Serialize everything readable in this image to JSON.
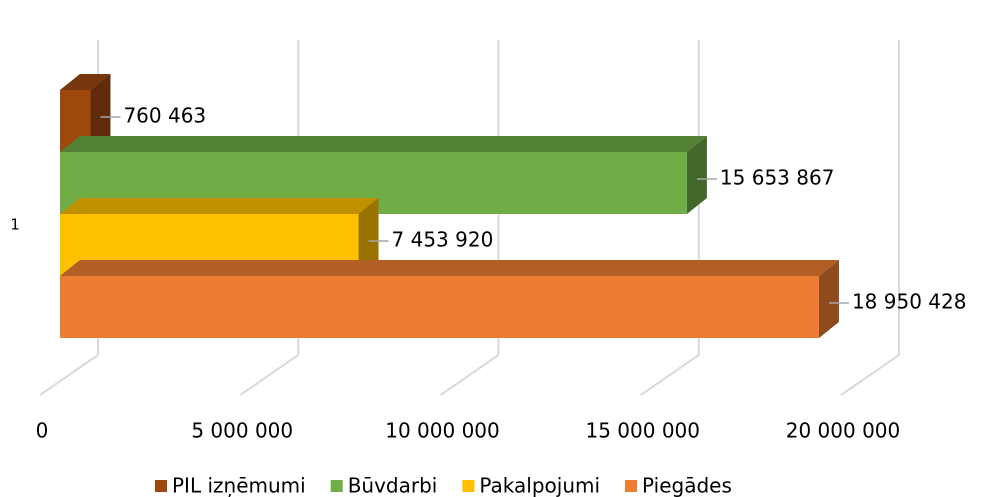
{
  "chart_data": {
    "type": "bar3d-horizontal",
    "categories": [
      "1"
    ],
    "series": [
      {
        "name": "PIL izņēmumi",
        "color": "#9E480E",
        "values": [
          760463
        ],
        "value_labels": [
          "760 463"
        ]
      },
      {
        "name": "Būvdarbi",
        "color": "#70AD47",
        "values": [
          15653867
        ],
        "value_labels": [
          "15 653 867"
        ]
      },
      {
        "name": "Pakalpojumi",
        "color": "#FFC000",
        "values": [
          7453920
        ],
        "value_labels": [
          "7 453 920"
        ]
      },
      {
        "name": "Piegādes",
        "color": "#ED7D31",
        "values": [
          18950428
        ],
        "value_labels": [
          "18 950 428"
        ]
      }
    ],
    "xlim": [
      0,
      20000000
    ],
    "xticks": [
      0,
      {
        "value": 5000000,
        "label": "5 000 000"
      },
      {
        "value": 10000000,
        "label": "10 000 000"
      },
      {
        "value": 15000000,
        "label": "15 000 000"
      },
      {
        "value": 20000000,
        "label": "20 000 000"
      }
    ],
    "grid": true,
    "legend": "bottom"
  }
}
